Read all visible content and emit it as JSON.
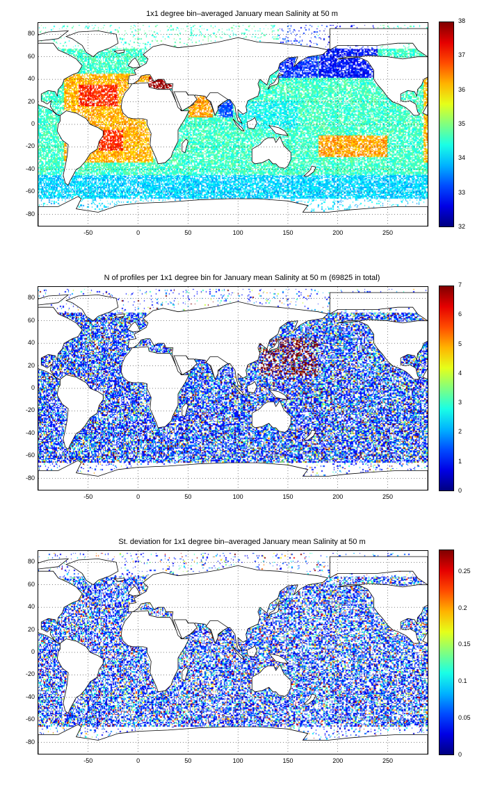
{
  "panels": [
    {
      "title": "1x1 degree bin–averaged January mean Salinity at 50 m",
      "colorbar": {
        "min": 32,
        "max": 38,
        "ticks": [
          "32",
          "33",
          "34",
          "35",
          "36",
          "37",
          "38"
        ]
      },
      "field": "salinity"
    },
    {
      "title": "N of profiles per 1x1 degree bin for January mean Salinity at 50 m (69825 in total)",
      "colorbar": {
        "min": 0,
        "max": 7,
        "ticks": [
          "0",
          "1",
          "2",
          "3",
          "4",
          "5",
          "6",
          "7"
        ]
      },
      "field": "count"
    },
    {
      "title": "St. deviation for 1x1 degree bin–averaged January mean Salinity at 50 m",
      "colorbar": {
        "min": 0,
        "max": 0.28,
        "ticks": [
          "0",
          "0.05",
          "0.1",
          "0.15",
          "0.2",
          "0.25"
        ]
      },
      "field": "std"
    }
  ],
  "axes": {
    "x_ticks": [
      "-50",
      "0",
      "50",
      "100",
      "150",
      "200",
      "250"
    ],
    "y_ticks": [
      "80",
      "60",
      "40",
      "20",
      "0",
      "-20",
      "-40",
      "-60",
      "-80"
    ],
    "xlim": [
      -100,
      290
    ],
    "ylim": [
      -90,
      90
    ],
    "grid": "dotted"
  },
  "colormap": "jet",
  "colors": {
    "land_outline": "#000000",
    "land_fill": "#ffffff",
    "grid": "#000000"
  }
}
